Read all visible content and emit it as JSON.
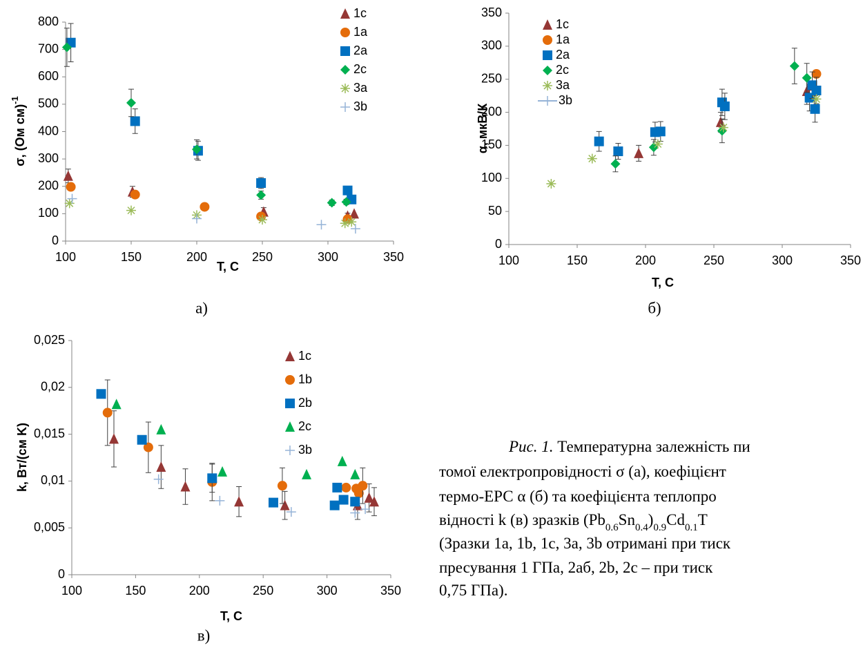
{
  "chart_data": [
    {
      "type": "scatter",
      "panel_label": "а)",
      "xlabel": "T, C",
      "ylabel": "σ, (Ом см)",
      "ylabel_sup": "-1",
      "legend": "upper right",
      "xlim": [
        100,
        350
      ],
      "xticks": [
        100,
        150,
        200,
        250,
        300,
        350
      ],
      "ylim": [
        0,
        800
      ],
      "yticks": [
        0,
        100,
        200,
        300,
        400,
        500,
        600,
        700,
        800
      ],
      "series": [
        {
          "name": "1c",
          "color": "#953735",
          "marker": "triangle",
          "x": [
            102,
            151,
            251,
            315,
            320
          ],
          "values": [
            238,
            180,
            107,
            92,
            100
          ],
          "errors": [
            25,
            20,
            15,
            10,
            null
          ]
        },
        {
          "name": "1a",
          "color": "#e46c0a",
          "marker": "circle",
          "x": [
            104,
            153,
            206,
            249,
            315
          ],
          "values": [
            198,
            170,
            125,
            90,
            80
          ],
          "errors": [
            null,
            null,
            null,
            null,
            null
          ]
        },
        {
          "name": "2a",
          "color": "#0070c0",
          "marker": "square",
          "x": [
            104,
            153,
            201,
            249,
            315,
            318
          ],
          "values": [
            725,
            438,
            330,
            212,
            185,
            152
          ],
          "errors": [
            70,
            45,
            35,
            20,
            15,
            null
          ]
        },
        {
          "name": "2c",
          "color": "#00b050",
          "marker": "diamond",
          "x": [
            101,
            150,
            200,
            249,
            303,
            314
          ],
          "values": [
            708,
            505,
            335,
            168,
            140,
            143
          ],
          "errors": [
            70,
            50,
            35,
            15,
            10,
            10
          ]
        },
        {
          "name": "3a",
          "color": "#9bbb59",
          "marker": "star",
          "x": [
            103,
            150,
            200,
            250,
            313,
            318
          ],
          "values": [
            138,
            112,
            95,
            78,
            65,
            70
          ],
          "errors": [
            null,
            null,
            null,
            null,
            null,
            null
          ]
        },
        {
          "name": "3b",
          "color": "#95b3d7",
          "marker": "plus",
          "x": [
            105,
            200,
            295,
            321
          ],
          "values": [
            155,
            82,
            60,
            45
          ],
          "errors": [
            null,
            null,
            null,
            null
          ]
        }
      ]
    },
    {
      "type": "scatter",
      "panel_label": "б)",
      "xlabel": "T, C",
      "ylabel": "α, мкВ/К",
      "legend": "upper left",
      "xlim": [
        100,
        350
      ],
      "xticks": [
        100,
        150,
        200,
        250,
        300,
        350
      ],
      "ylim": [
        0,
        350
      ],
      "yticks": [
        0,
        50,
        100,
        150,
        200,
        250,
        300,
        350
      ],
      "series": [
        {
          "name": "1c",
          "color": "#953735",
          "marker": "triangle",
          "x": [
            195,
            255,
            318,
            320
          ],
          "values": [
            138,
            185,
            232,
            240
          ],
          "errors": [
            12,
            15,
            20,
            null
          ]
        },
        {
          "name": "1a",
          "color": "#e46c0a",
          "marker": "circle",
          "x": [
            325
          ],
          "values": [
            258
          ],
          "errors": [
            null
          ]
        },
        {
          "name": "2a",
          "color": "#0070c0",
          "marker": "square",
          "x": [
            166,
            180,
            207,
            211,
            256,
            258,
            320,
            322,
            324,
            325
          ],
          "values": [
            156,
            141,
            170,
            171,
            215,
            209,
            222,
            241,
            205,
            233
          ],
          "errors": [
            15,
            12,
            15,
            15,
            20,
            20,
            20,
            20,
            20,
            20
          ]
        },
        {
          "name": "2c",
          "color": "#00b050",
          "marker": "diamond",
          "x": [
            178,
            206,
            256,
            309,
            318
          ],
          "values": [
            122,
            147,
            172,
            270,
            252
          ],
          "errors": [
            12,
            12,
            18,
            27,
            22
          ]
        },
        {
          "name": "3a",
          "color": "#9bbb59",
          "marker": "star",
          "x": [
            131,
            161,
            209,
            257,
            325
          ],
          "values": [
            92,
            130,
            152,
            177,
            220
          ],
          "errors": [
            null,
            null,
            null,
            null,
            null
          ]
        },
        {
          "name": "3b",
          "color": "#95b3d7",
          "marker": "plus",
          "line": true,
          "x": [],
          "values": [],
          "errors": []
        }
      ]
    },
    {
      "type": "scatter",
      "panel_label": "в)",
      "xlabel": "T, C",
      "ylabel": "k, Вт/(см K)",
      "legend": "upper right",
      "xlim": [
        100,
        350
      ],
      "xticks": [
        100,
        150,
        200,
        250,
        300,
        350
      ],
      "ylim": [
        0,
        0.025
      ],
      "yticks": [
        0,
        {
          "value": 0.005,
          "label": "0,005"
        },
        {
          "value": 0.01,
          "label": "0,01"
        },
        {
          "value": 0.015,
          "label": "0,015"
        },
        {
          "value": 0.02,
          "label": "0,02"
        },
        {
          "value": 0.025,
          "label": "0,025"
        }
      ],
      "series": [
        {
          "name": "1c",
          "color": "#953735",
          "marker": "triangle",
          "x": [
            133,
            170,
            189,
            231,
            267,
            324,
            333,
            337
          ],
          "values": [
            0.0145,
            0.0115,
            0.0094,
            0.0078,
            0.0074,
            0.0074,
            0.0082,
            0.0078
          ],
          "errors": [
            0.003,
            0.0023,
            0.0019,
            0.0016,
            0.0015,
            0.0015,
            0.0015,
            0.0015
          ]
        },
        {
          "name": "1b",
          "color": "#e46c0a",
          "marker": "circle",
          "x": [
            128,
            160,
            210,
            265,
            315,
            323,
            325,
            328
          ],
          "values": [
            0.0173,
            0.0136,
            0.0099,
            0.0095,
            0.0093,
            0.0092,
            0.0087,
            0.0095
          ],
          "errors": [
            0.0035,
            0.0027,
            0.002,
            0.0019,
            null,
            null,
            null,
            0.0019
          ]
        },
        {
          "name": "2b",
          "color": "#0070c0",
          "marker": "square",
          "x": [
            123,
            155,
            210,
            258,
            306,
            308,
            313,
            322
          ],
          "values": [
            0.0193,
            0.0144,
            0.0103,
            0.0077,
            0.0074,
            0.0093,
            0.008,
            0.0078
          ],
          "errors": [
            null,
            null,
            0.0015,
            null,
            null,
            null,
            null,
            null
          ]
        },
        {
          "name": "2c",
          "color": "#00b050",
          "marker": "triangle",
          "x": [
            135,
            170,
            218,
            284,
            312,
            322
          ],
          "values": [
            0.0182,
            0.0155,
            0.011,
            0.0107,
            0.0121,
            0.0107
          ],
          "errors": [
            null,
            null,
            null,
            null,
            null,
            null
          ]
        },
        {
          "name": "3b",
          "color": "#95b3d7",
          "marker": "plus",
          "x": [
            168,
            216,
            272,
            322,
            330
          ],
          "values": [
            0.0102,
            0.0079,
            0.0067,
            0.0066,
            0.007
          ],
          "errors": [
            null,
            null,
            null,
            null,
            null
          ]
        }
      ]
    }
  ],
  "caption": {
    "label": "Рис. 1.",
    "lines": [
      "Температурна залежність пи",
      "томої електропровідності σ (а), коефіцієнт",
      "термо-ЕРС α (б) та коефіцієнта теплопро",
      [
        "відності k (в) зразків (Pb",
        "0.6",
        "Sn",
        "0.4",
        ")",
        "0.9",
        "Cd",
        "0.1",
        "T"
      ],
      "(Зразки 1a, 1b, 1c, 3a, 3b отримані при тиск",
      "пресування 1 ГПа, 2аб, 2b, 2c – при тиск",
      "0,75 ГПа)."
    ]
  }
}
